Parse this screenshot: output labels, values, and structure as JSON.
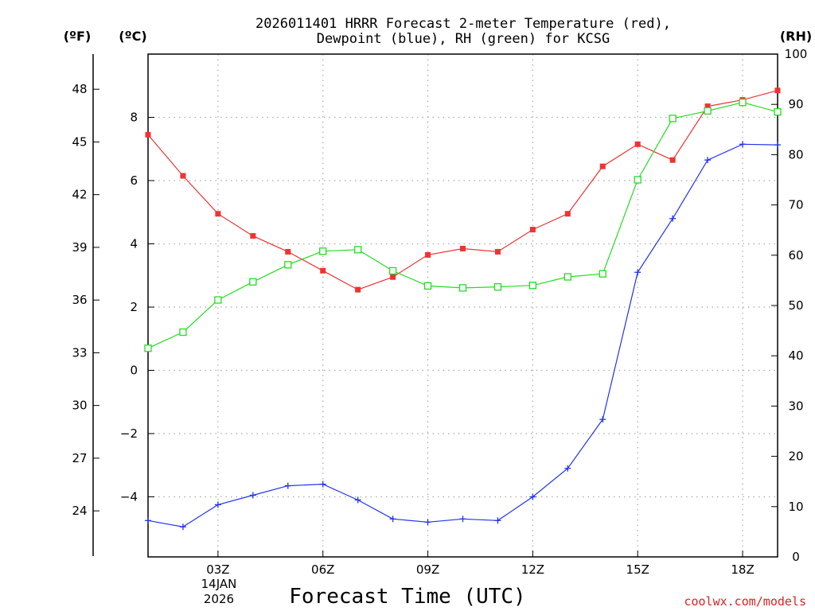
{
  "colors": {
    "temperature": "#ee3333",
    "dewpoint": "#2233ee",
    "rh": "#22dd22",
    "grid": "#aaaaaa",
    "credit": "#dd2222"
  },
  "chart_data": {
    "type": "line",
    "title_line1": "2026011401 HRRR Forecast 2-meter Temperature (red),",
    "title_line2": "Dewpoint (blue), RH (green) for KCSG",
    "left_unit_f": "(ºF)",
    "left_unit_c": "(ºC)",
    "right_unit": "(RH)",
    "xlabel": "Forecast Time (UTC)",
    "credit": "coolwx.com/models",
    "date_label": "14JAN",
    "year_label": "2026",
    "x_range": [
      1,
      19
    ],
    "celsius_range": [
      -5.9,
      10
    ],
    "rh_range": [
      0,
      100
    ],
    "x_ticks": [
      {
        "x": 3,
        "label": "03Z"
      },
      {
        "x": 6,
        "label": "06Z"
      },
      {
        "x": 9,
        "label": "09Z"
      },
      {
        "x": 12,
        "label": "12Z"
      },
      {
        "x": 15,
        "label": "15Z"
      },
      {
        "x": 18,
        "label": "18Z"
      }
    ],
    "celsius_ticks": [
      "8",
      "6",
      "4",
      "2",
      "0",
      "−2",
      "−4"
    ],
    "celsius_tick_values": [
      8,
      6,
      4,
      2,
      0,
      -2,
      -4
    ],
    "fahrenheit_ticks": [
      "48",
      "45",
      "42",
      "39",
      "36",
      "33",
      "30",
      "27",
      "24"
    ],
    "fahrenheit_tick_values": [
      48,
      45,
      42,
      39,
      36,
      33,
      30,
      27,
      24
    ],
    "rh_ticks": [
      "100",
      "90",
      "80",
      "70",
      "60",
      "50",
      "40",
      "30",
      "20",
      "10",
      "0"
    ],
    "rh_tick_values": [
      100,
      90,
      80,
      70,
      60,
      50,
      40,
      30,
      20,
      10,
      0
    ],
    "x": [
      1,
      2,
      3,
      4,
      5,
      6,
      7,
      8,
      9,
      10,
      11,
      12,
      13,
      14,
      15,
      16,
      17,
      18,
      19
    ],
    "series": [
      {
        "name": "Temperature (°C)",
        "key": "temperature",
        "axis": "celsius",
        "values": [
          7.45,
          6.15,
          4.95,
          4.25,
          3.75,
          3.15,
          2.55,
          2.95,
          3.65,
          3.85,
          3.75,
          4.45,
          4.95,
          6.45,
          7.15,
          6.65,
          8.35,
          8.55,
          8.85
        ]
      },
      {
        "name": "Dewpoint (°C)",
        "key": "dewpoint",
        "axis": "celsius",
        "values": [
          -4.75,
          -4.95,
          -4.25,
          -3.95,
          -3.65,
          -3.6,
          -4.1,
          -4.7,
          -4.8,
          -4.7,
          -4.75,
          -4.0,
          -3.1,
          -1.55,
          3.1,
          4.8,
          6.65,
          7.15,
          7.13
        ]
      },
      {
        "name": "RH (%)",
        "key": "rh",
        "axis": "rh",
        "values": [
          41.5,
          44.7,
          51.1,
          54.7,
          58.1,
          60.8,
          61.1,
          56.9,
          53.9,
          53.5,
          53.7,
          54.0,
          55.7,
          56.3,
          75.0,
          87.2,
          88.7,
          90.4,
          88.5
        ]
      }
    ]
  }
}
